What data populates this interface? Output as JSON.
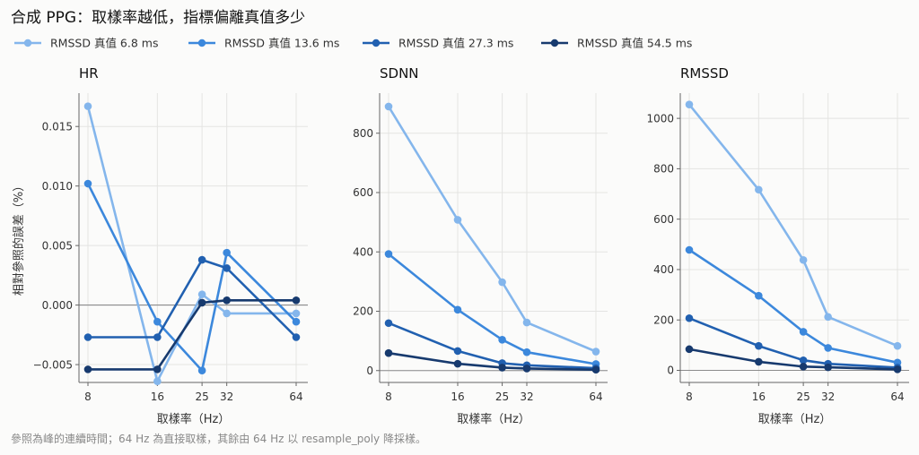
{
  "title": "合成 PPG：取樣率越低，指標偏離真值多少",
  "footnote": "參照為峰的連續時間；64 Hz 為直接取樣，其餘由 64 Hz 以 resample_poly 降採樣。",
  "colors": [
    "#84b6ec",
    "#3c88dc",
    "#2160b0",
    "#173a6e"
  ],
  "chart_data": [
    {
      "type": "line",
      "title": "HR",
      "xlabel": "取樣率（Hz）",
      "ylabel": "相對參照的誤差（%）",
      "x": [
        8,
        16,
        25,
        32,
        64
      ],
      "xticks": [
        "8",
        "16",
        "25",
        "32",
        "64"
      ],
      "ylim": [
        -0.0065,
        0.0178
      ],
      "yticks": [
        -0.005,
        0.0,
        0.005,
        0.01,
        0.015
      ],
      "ytick_labels": [
        "−0.005",
        "0.000",
        "0.005",
        "0.010",
        "0.015"
      ],
      "zero_line": true,
      "grid": true,
      "legend": "top-left",
      "series": [
        {
          "name": "RMSSD 真值 6.8 ms",
          "values": [
            0.0167,
            -0.0064,
            0.0009,
            -0.0007,
            -0.0007
          ]
        },
        {
          "name": "RMSSD 真值 13.6 ms",
          "values": [
            0.0102,
            -0.0014,
            -0.0055,
            0.0044,
            -0.0014
          ]
        },
        {
          "name": "RMSSD 真值 27.3 ms",
          "values": [
            -0.0027,
            -0.0027,
            0.0038,
            0.0031,
            -0.0027
          ]
        },
        {
          "name": "RMSSD 真值 54.5 ms",
          "values": [
            -0.0054,
            -0.0054,
            0.0002,
            0.0004,
            0.0004
          ]
        }
      ]
    },
    {
      "type": "line",
      "title": "SDNN",
      "xlabel": "取樣率（Hz）",
      "ylabel": "",
      "x": [
        8,
        16,
        25,
        32,
        64
      ],
      "xticks": [
        "8",
        "16",
        "25",
        "32",
        "64"
      ],
      "ylim": [
        -40,
        935
      ],
      "yticks": [
        0,
        200,
        400,
        600,
        800
      ],
      "ytick_labels": [
        "0",
        "200",
        "400",
        "600",
        "800"
      ],
      "zero_line": true,
      "grid": true,
      "series": [
        {
          "name": "RMSSD 真值 6.8 ms",
          "values": [
            890,
            508,
            298,
            162,
            64
          ]
        },
        {
          "name": "RMSSD 真值 13.6 ms",
          "values": [
            393,
            205,
            104,
            62,
            22
          ]
        },
        {
          "name": "RMSSD 真值 27.3 ms",
          "values": [
            160,
            66,
            25,
            18,
            8
          ]
        },
        {
          "name": "RMSSD 真值 54.5 ms",
          "values": [
            59,
            23,
            10,
            7,
            3
          ]
        }
      ]
    },
    {
      "type": "line",
      "title": "RMSSD",
      "xlabel": "取樣率（Hz）",
      "ylabel": "",
      "x": [
        8,
        16,
        25,
        32,
        64
      ],
      "xticks": [
        "8",
        "16",
        "25",
        "32",
        "64"
      ],
      "ylim": [
        -48,
        1100
      ],
      "yticks": [
        0,
        200,
        400,
        600,
        800,
        1000
      ],
      "ytick_labels": [
        "0",
        "200",
        "400",
        "600",
        "800",
        "1000"
      ],
      "zero_line": true,
      "grid": true,
      "series": [
        {
          "name": "RMSSD 真值 6.8 ms",
          "values": [
            1055,
            717,
            438,
            212,
            97
          ]
        },
        {
          "name": "RMSSD 真值 13.6 ms",
          "values": [
            478,
            296,
            153,
            89,
            31
          ]
        },
        {
          "name": "RMSSD 真值 27.3 ms",
          "values": [
            207,
            97,
            40,
            26,
            11
          ]
        },
        {
          "name": "RMSSD 真值 54.5 ms",
          "values": [
            84,
            34,
            15,
            12,
            4
          ]
        }
      ]
    }
  ]
}
